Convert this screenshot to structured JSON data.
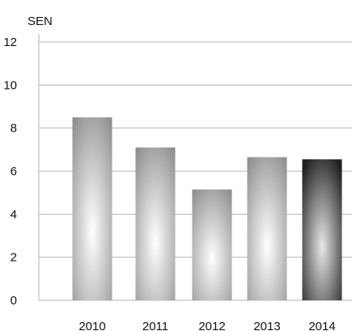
{
  "chart_data": {
    "type": "bar",
    "unit_label": "SEN",
    "categories": [
      "2010",
      "2011",
      "2012",
      "2013",
      "2014"
    ],
    "values": [
      8.5,
      7.1,
      5.15,
      6.65,
      6.55
    ],
    "ylim": [
      0,
      12
    ],
    "y_ticks": [
      "0",
      "2",
      "4",
      "6",
      "8",
      "10",
      "12"
    ],
    "grid": true,
    "bar_styles": [
      "silver",
      "silver",
      "silver",
      "silver",
      "dark"
    ],
    "colors": {
      "grid": "#b5b5b5",
      "silver_edge": "#8e8e8e",
      "silver_center": "#ffffff",
      "dark_edge": "#1f1f1f",
      "dark_center": "#e8e8e8"
    }
  }
}
